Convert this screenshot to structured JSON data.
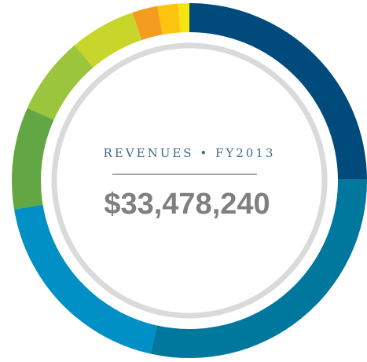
{
  "chart_data": {
    "type": "donut",
    "title": "REVENUES • FY2013",
    "total_label": "$33,478,240",
    "values": [
      24.9,
      28.6,
      18.9,
      9.3,
      7.1,
      6.0,
      2.3,
      1.9,
      1.0
    ],
    "colors": [
      "#004b7c",
      "#00779c",
      "#0090c6",
      "#63a744",
      "#9bc53d",
      "#c8d62b",
      "#f49c1f",
      "#fcc40f",
      "#f4e511"
    ]
  }
}
